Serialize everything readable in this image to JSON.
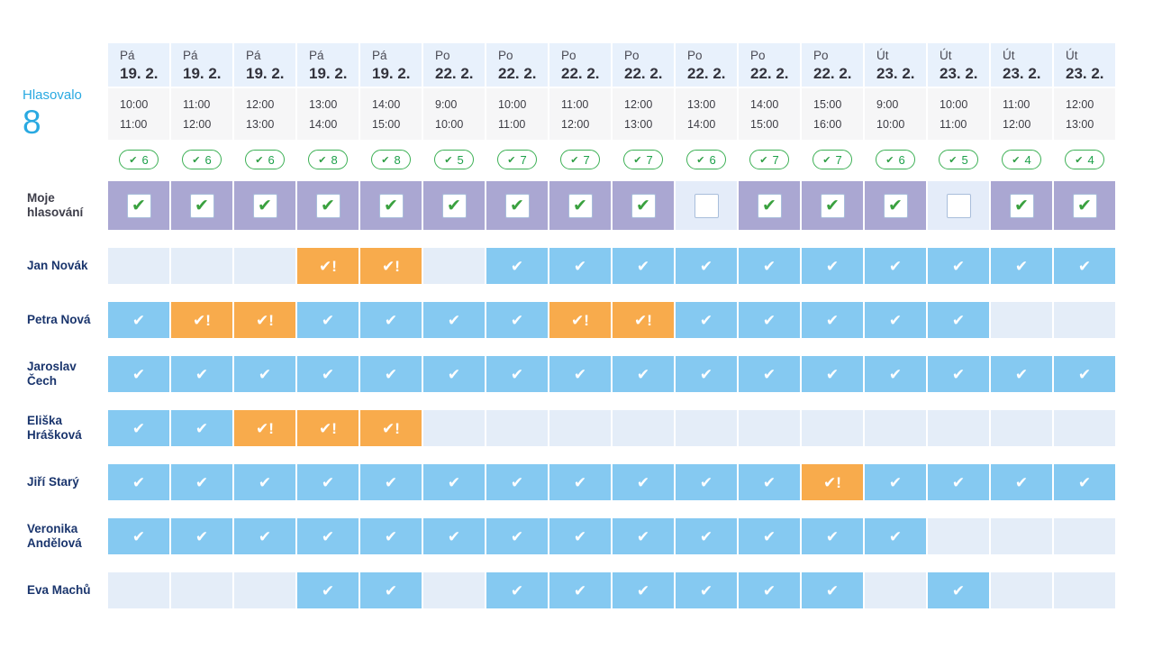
{
  "summary": {
    "label": "Hlasovalo",
    "count": "8"
  },
  "my_row_label": "Moje hlasování",
  "icons": {
    "check": "✔",
    "check_priority": "✔!",
    "badge_check": "✔"
  },
  "colors": {
    "accent_blue": "#29a9e1",
    "cell_yes": "#85c9f1",
    "cell_maybe": "#f8ab4c",
    "cell_empty": "#e4edf8",
    "cell_my_checked": "#aaa7d2",
    "cell_my_unchecked": "#e4ecf9",
    "badge_green": "#1da04a",
    "day_header_bg": "#e8f1fc",
    "time_bg": "#f6f6f7",
    "name_navy": "#1a356d"
  },
  "columns": [
    {
      "day": "Pá",
      "date": "19. 2.",
      "time_start": "10:00",
      "time_end": "11:00",
      "votes": "6",
      "my_vote": true
    },
    {
      "day": "Pá",
      "date": "19. 2.",
      "time_start": "11:00",
      "time_end": "12:00",
      "votes": "6",
      "my_vote": true
    },
    {
      "day": "Pá",
      "date": "19. 2.",
      "time_start": "12:00",
      "time_end": "13:00",
      "votes": "6",
      "my_vote": true
    },
    {
      "day": "Pá",
      "date": "19. 2.",
      "time_start": "13:00",
      "time_end": "14:00",
      "votes": "8",
      "my_vote": true
    },
    {
      "day": "Pá",
      "date": "19. 2.",
      "time_start": "14:00",
      "time_end": "15:00",
      "votes": "8",
      "my_vote": true
    },
    {
      "day": "Po",
      "date": "22. 2.",
      "time_start": "9:00",
      "time_end": "10:00",
      "votes": "5",
      "my_vote": true
    },
    {
      "day": "Po",
      "date": "22. 2.",
      "time_start": "10:00",
      "time_end": "11:00",
      "votes": "7",
      "my_vote": true
    },
    {
      "day": "Po",
      "date": "22. 2.",
      "time_start": "11:00",
      "time_end": "12:00",
      "votes": "7",
      "my_vote": true
    },
    {
      "day": "Po",
      "date": "22. 2.",
      "time_start": "12:00",
      "time_end": "13:00",
      "votes": "7",
      "my_vote": true
    },
    {
      "day": "Po",
      "date": "22. 2.",
      "time_start": "13:00",
      "time_end": "14:00",
      "votes": "6",
      "my_vote": false
    },
    {
      "day": "Po",
      "date": "22. 2.",
      "time_start": "14:00",
      "time_end": "15:00",
      "votes": "7",
      "my_vote": true
    },
    {
      "day": "Po",
      "date": "22. 2.",
      "time_start": "15:00",
      "time_end": "16:00",
      "votes": "7",
      "my_vote": true
    },
    {
      "day": "Út",
      "date": "23. 2.",
      "time_start": "9:00",
      "time_end": "10:00",
      "votes": "6",
      "my_vote": true
    },
    {
      "day": "Út",
      "date": "23. 2.",
      "time_start": "10:00",
      "time_end": "11:00",
      "votes": "5",
      "my_vote": false
    },
    {
      "day": "Út",
      "date": "23. 2.",
      "time_start": "11:00",
      "time_end": "12:00",
      "votes": "4",
      "my_vote": true
    },
    {
      "day": "Út",
      "date": "23. 2.",
      "time_start": "12:00",
      "time_end": "13:00",
      "votes": "4",
      "my_vote": true
    }
  ],
  "participants": [
    {
      "name": "Jan Novák",
      "votes": [
        "no",
        "no",
        "no",
        "maybe",
        "maybe",
        "no",
        "yes",
        "yes",
        "yes",
        "yes",
        "yes",
        "yes",
        "yes",
        "yes",
        "yes",
        "yes"
      ]
    },
    {
      "name": "Petra Nová",
      "votes": [
        "yes",
        "maybe",
        "maybe",
        "yes",
        "yes",
        "yes",
        "yes",
        "maybe",
        "maybe",
        "yes",
        "yes",
        "yes",
        "yes",
        "yes",
        "no",
        "no"
      ]
    },
    {
      "name": "Jaroslav Čech",
      "votes": [
        "yes",
        "yes",
        "yes",
        "yes",
        "yes",
        "yes",
        "yes",
        "yes",
        "yes",
        "yes",
        "yes",
        "yes",
        "yes",
        "yes",
        "yes",
        "yes"
      ]
    },
    {
      "name": "Eliška Hrášková",
      "votes": [
        "yes",
        "yes",
        "maybe",
        "maybe",
        "maybe",
        "no",
        "no",
        "no",
        "no",
        "no",
        "no",
        "no",
        "no",
        "no",
        "no",
        "no"
      ]
    },
    {
      "name": "Jiří Starý",
      "votes": [
        "yes",
        "yes",
        "yes",
        "yes",
        "yes",
        "yes",
        "yes",
        "yes",
        "yes",
        "yes",
        "yes",
        "maybe",
        "yes",
        "yes",
        "yes",
        "yes"
      ]
    },
    {
      "name": "Veronika Andělová",
      "votes": [
        "yes",
        "yes",
        "yes",
        "yes",
        "yes",
        "yes",
        "yes",
        "yes",
        "yes",
        "yes",
        "yes",
        "yes",
        "yes",
        "no",
        "no",
        "no"
      ]
    },
    {
      "name": "Eva Machů",
      "votes": [
        "no",
        "no",
        "no",
        "yes",
        "yes",
        "no",
        "yes",
        "yes",
        "yes",
        "yes",
        "yes",
        "yes",
        "no",
        "yes",
        "no",
        "no"
      ]
    }
  ]
}
